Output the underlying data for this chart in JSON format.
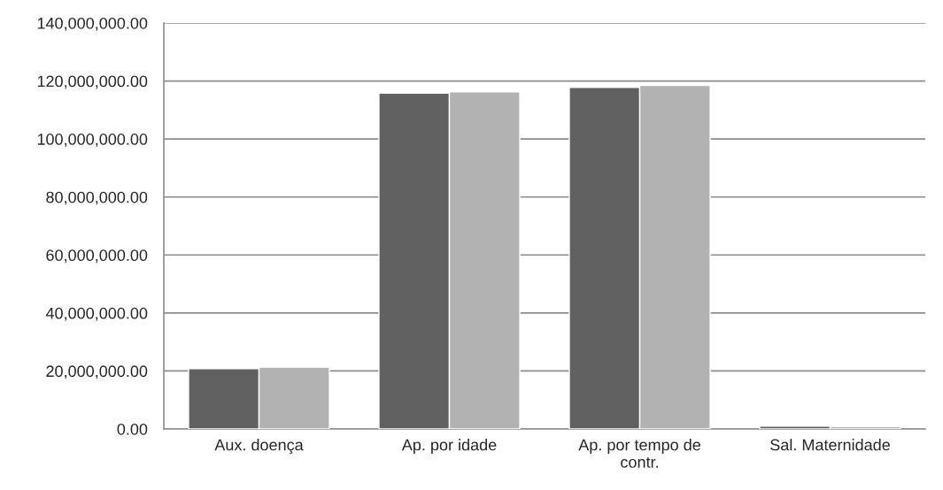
{
  "chart_data": {
    "type": "bar",
    "categories": [
      "Aux. doença",
      "Ap. por idade",
      "Ap. por tempo de\ncontr.",
      "Sal. Maternidade"
    ],
    "series": [
      {
        "color": "#606060",
        "values": [
          20800000,
          115800000,
          117800000,
          1000000
        ]
      },
      {
        "color": "#b2b2b2",
        "values": [
          21300000,
          116300000,
          118500000,
          800000
        ]
      }
    ],
    "ylim": [
      0,
      140000000
    ],
    "yticks": [
      {
        "value": 0,
        "label": "0.00"
      },
      {
        "value": 20000000,
        "label": "20,000,000.00"
      },
      {
        "value": 40000000,
        "label": "40,000,000.00"
      },
      {
        "value": 60000000,
        "label": "60,000,000.00"
      },
      {
        "value": 80000000,
        "label": "80,000,000.00"
      },
      {
        "value": 100000000,
        "label": "100,000,000.00"
      },
      {
        "value": 120000000,
        "label": "120,000,000.00"
      },
      {
        "value": 140000000,
        "label": "140,000,000.00"
      }
    ],
    "grid": "y",
    "legend": false
  }
}
